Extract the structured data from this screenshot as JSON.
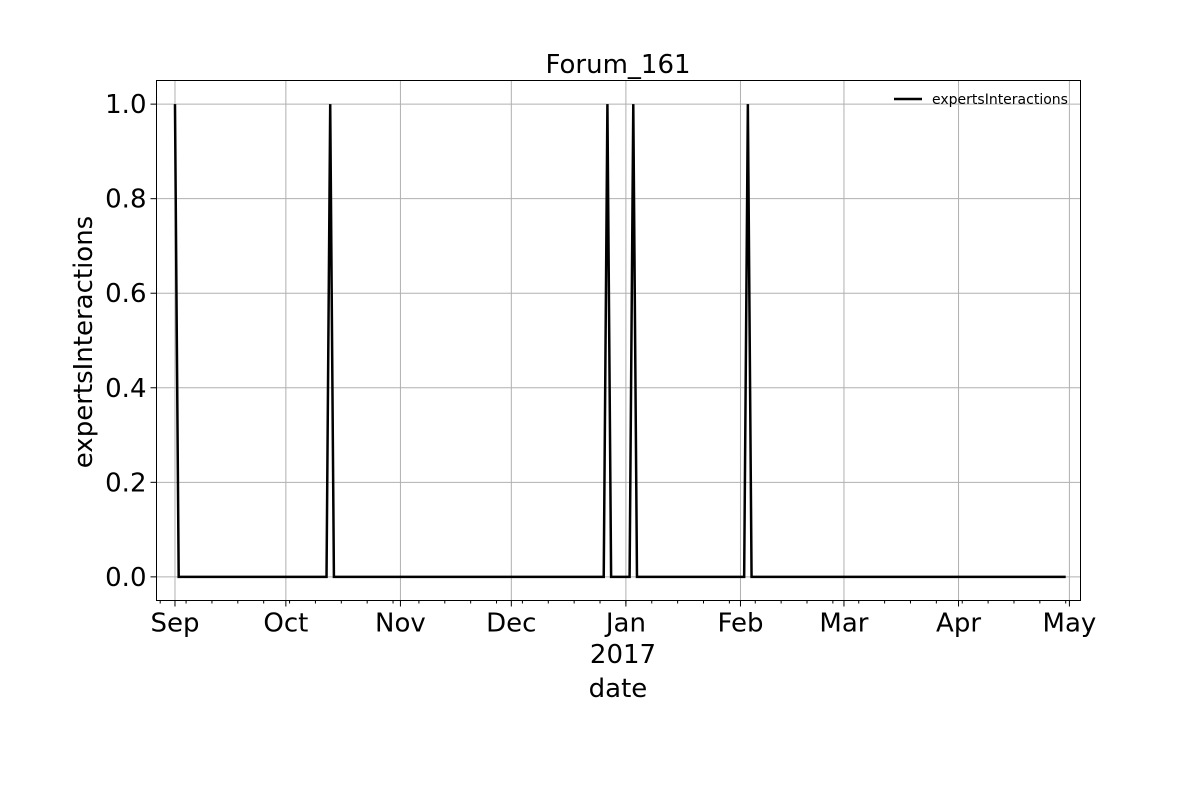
{
  "chart_data": {
    "type": "line",
    "title": "Forum_161",
    "xlabel": "date",
    "ylabel": "expertsInteractions",
    "year_label": "2017",
    "xlim": [
      "2016-08-27",
      "2017-05-04"
    ],
    "ylim": [
      -0.05,
      1.05
    ],
    "x_ticks": [
      {
        "date": "2016-09-01",
        "label": "Sep"
      },
      {
        "date": "2016-10-01",
        "label": "Oct"
      },
      {
        "date": "2016-11-01",
        "label": "Nov"
      },
      {
        "date": "2016-12-01",
        "label": "Dec"
      },
      {
        "date": "2017-01-01",
        "label": "Jan"
      },
      {
        "date": "2017-02-01",
        "label": "Feb"
      },
      {
        "date": "2017-03-01",
        "label": "Mar"
      },
      {
        "date": "2017-04-01",
        "label": "Apr"
      },
      {
        "date": "2017-05-01",
        "label": "May"
      }
    ],
    "y_ticks": [
      {
        "value": 0.0,
        "label": "0.0"
      },
      {
        "value": 0.2,
        "label": "0.2"
      },
      {
        "value": 0.4,
        "label": "0.4"
      },
      {
        "value": 0.6,
        "label": "0.6"
      },
      {
        "value": 0.8,
        "label": "0.8"
      },
      {
        "value": 1.0,
        "label": "1.0"
      }
    ],
    "grid": true,
    "legend": {
      "position": "top-right"
    },
    "series": [
      {
        "name": "expertsInteractions",
        "color": "#000000",
        "points": [
          {
            "x": "2016-09-01",
            "y": 1
          },
          {
            "x": "2016-09-02",
            "y": 0
          },
          {
            "x": "2016-10-12",
            "y": 0
          },
          {
            "x": "2016-10-13",
            "y": 1
          },
          {
            "x": "2016-10-14",
            "y": 0
          },
          {
            "x": "2016-12-26",
            "y": 0
          },
          {
            "x": "2016-12-27",
            "y": 1
          },
          {
            "x": "2016-12-28",
            "y": 0
          },
          {
            "x": "2017-01-02",
            "y": 0
          },
          {
            "x": "2017-01-03",
            "y": 1
          },
          {
            "x": "2017-01-04",
            "y": 0
          },
          {
            "x": "2017-02-02",
            "y": 0
          },
          {
            "x": "2017-02-03",
            "y": 1
          },
          {
            "x": "2017-02-04",
            "y": 0
          },
          {
            "x": "2017-04-30",
            "y": 0
          }
        ]
      }
    ]
  }
}
